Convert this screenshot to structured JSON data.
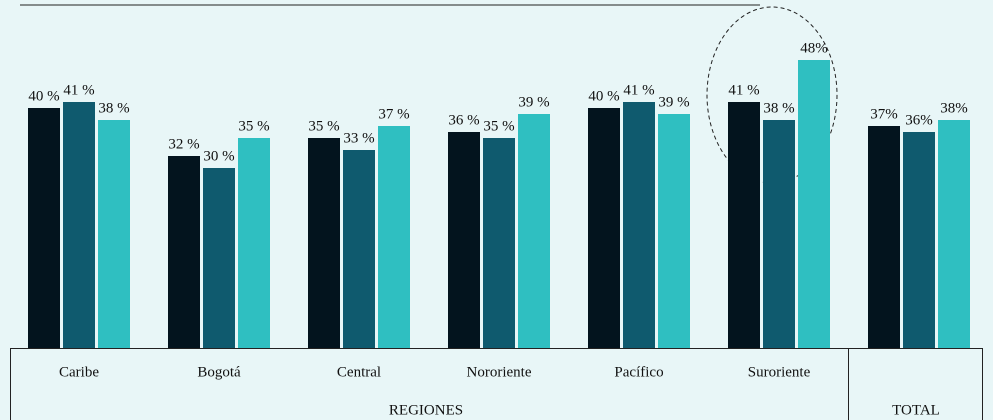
{
  "chart_data": {
    "type": "bar",
    "categories": [
      "Caribe",
      "Bogotá",
      "Central",
      "Nororiente",
      "Pacífico",
      "Suroriente",
      null
    ],
    "group_labels": [
      "REGIONES",
      "TOTAL"
    ],
    "series": [
      {
        "color": "#03141e",
        "values": [
          40,
          32,
          35,
          36,
          40,
          41,
          37
        ],
        "value_labels": [
          "40 %",
          "32 %",
          "35 %",
          "36 %",
          "40 %",
          "41 %",
          "37%"
        ]
      },
      {
        "color": "#0f5a6e",
        "values": [
          41,
          30,
          33,
          35,
          41,
          38,
          36
        ],
        "value_labels": [
          "41 %",
          "30 %",
          "33 %",
          "35 %",
          "41 %",
          "38 %",
          "36%"
        ]
      },
      {
        "color": "#2fbfc1",
        "values": [
          38,
          35,
          37,
          39,
          39,
          48,
          38
        ],
        "value_labels": [
          "38 %",
          "35 %",
          "37 %",
          "39 %",
          "39 %",
          "48%",
          "38%"
        ]
      }
    ],
    "ylim": [
      0,
      58
    ]
  }
}
